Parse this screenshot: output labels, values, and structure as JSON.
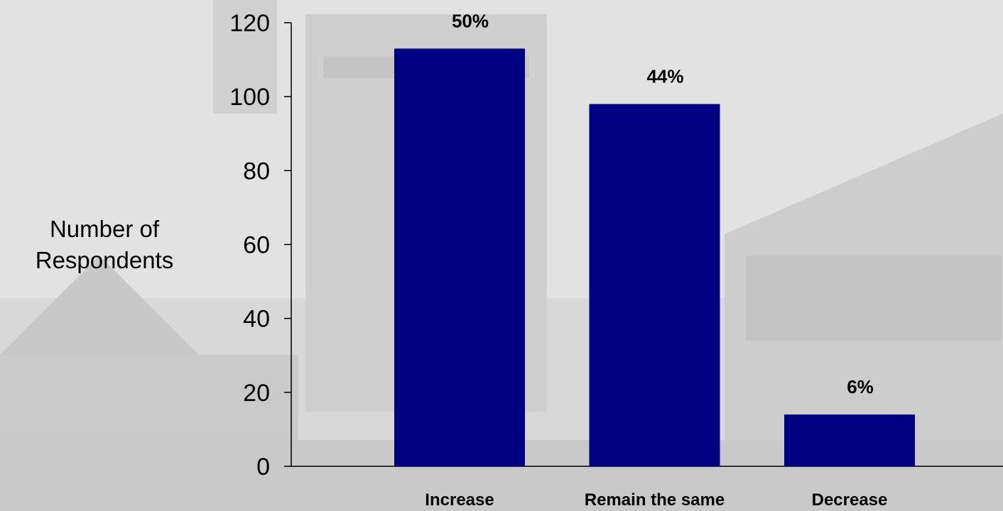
{
  "chart_data": {
    "type": "bar",
    "categories": [
      "Increase",
      "Remain the same",
      "Decrease"
    ],
    "values": [
      113,
      98,
      14
    ],
    "data_labels": [
      "50%",
      "44%",
      "6%"
    ],
    "title": "",
    "xlabel": "",
    "ylabel": [
      "Number of",
      "Respondents"
    ],
    "ylim": [
      0,
      120
    ],
    "yticks": [
      0,
      20,
      40,
      60,
      80,
      100,
      120
    ],
    "grid": false,
    "legend": "none",
    "colors": {
      "bar": "#000080",
      "axis": "#000000",
      "background": "#d9d9d9"
    }
  }
}
